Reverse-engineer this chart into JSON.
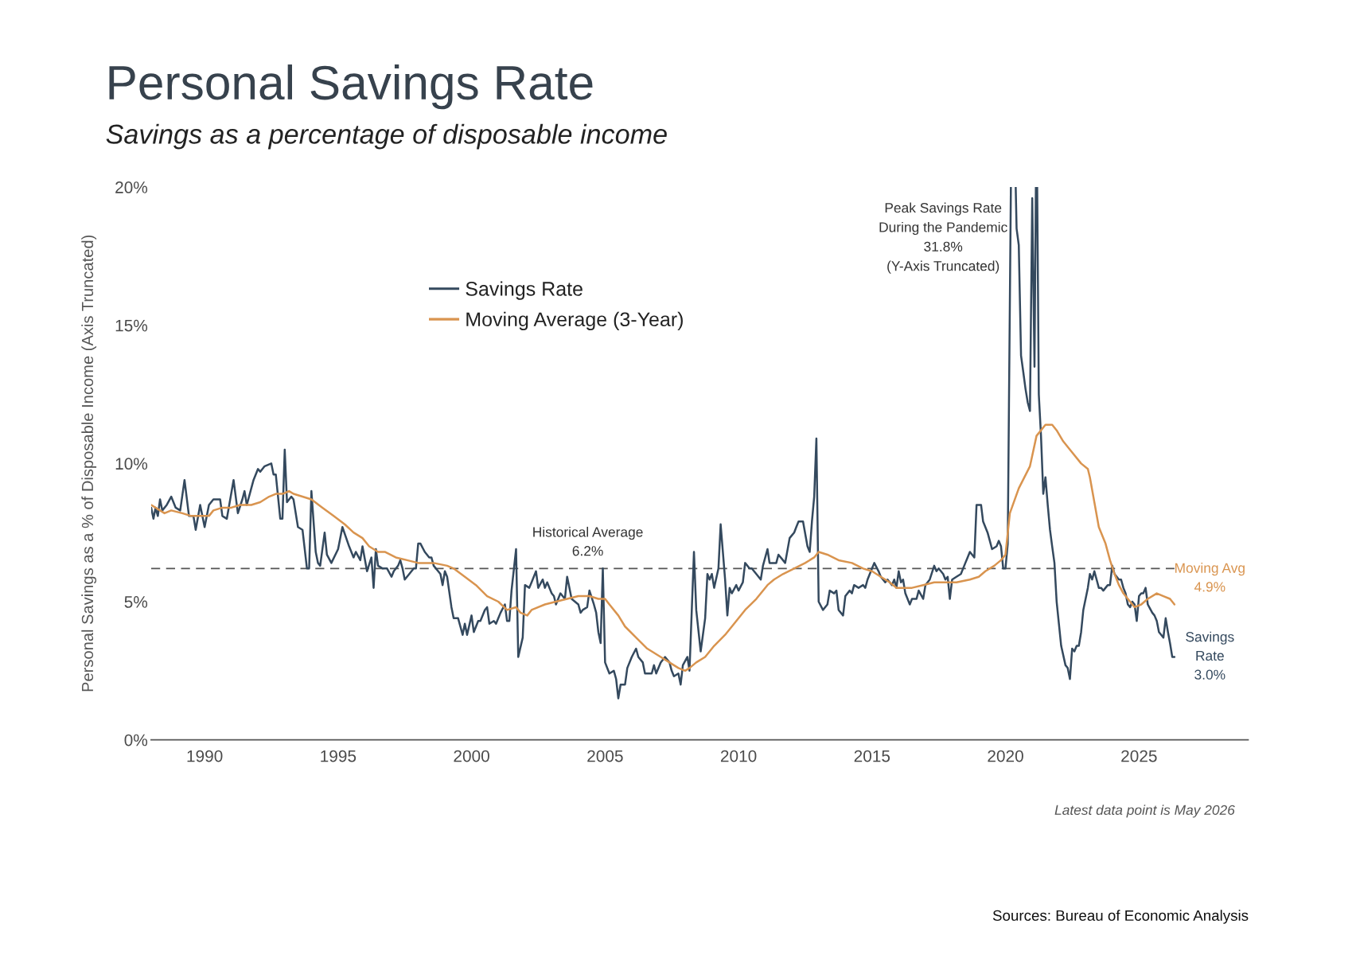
{
  "chart_data": {
    "type": "line",
    "title": "Personal Savings Rate",
    "subtitle": "Savings as a percentage of disposable income",
    "ylabel": "Personal Savings as a % of Disposable Income (Axis Truncated)",
    "xlim": [
      "1988-01",
      "2029-02"
    ],
    "xticks": [
      "1990",
      "1995",
      "2000",
      "2005",
      "2010",
      "2015",
      "2020",
      "2025"
    ],
    "ylim": [
      0,
      20
    ],
    "yticks": [
      {
        "value": 0,
        "label": "0%"
      },
      {
        "value": 5,
        "label": "5%"
      },
      {
        "value": 10,
        "label": "10%"
      },
      {
        "value": 15,
        "label": "15%"
      },
      {
        "value": 20,
        "label": "20%"
      }
    ],
    "legend": "top left",
    "ref_lines": [
      {
        "axis": "y",
        "value": 6.2,
        "label": "Historical Average\n6.2%",
        "color": "#555555",
        "line_style": "dashed"
      }
    ],
    "annotations": [
      "Peak Savings Rate\nDuring the Pandemic\n31.8%\n(Y-Axis Truncated)",
      {
        "text": "Moving Avg\n4.9%",
        "x": "2026-05",
        "y": 4.9
      },
      {
        "text": "Savings\nRate\n3.0%",
        "x": "2026-05",
        "y": 3.0
      },
      "Latest data point is May 2026",
      "Sources: Bureau of Economic Analysis"
    ],
    "series": [
      {
        "name": "Savings Rate",
        "color": "#34495e",
        "x": [
          "1988-01",
          "1988-02",
          "1988-03",
          "1988-04",
          "1988-05",
          "1988-06",
          "1988-08",
          "1988-10",
          "1988-12",
          "1989-02",
          "1989-04",
          "1989-06",
          "1989-08",
          "1989-09",
          "1989-11",
          "1990-01",
          "1990-03",
          "1990-05",
          "1990-08",
          "1990-09",
          "1990-11",
          "1991-02",
          "1991-04",
          "1991-06",
          "1991-07",
          "1991-08",
          "1991-11",
          "1992-01",
          "1992-02",
          "1992-04",
          "1992-07",
          "1992-08",
          "1992-09",
          "1992-11",
          "1992-12",
          "1993-01",
          "1993-02",
          "1993-04",
          "1993-05",
          "1993-07",
          "1993-09",
          "1993-11",
          "1993-12",
          "1994-01",
          "1994-03",
          "1994-04",
          "1994-05",
          "1994-07",
          "1994-08",
          "1994-10",
          "1995-01",
          "1995-03",
          "1995-06",
          "1995-08",
          "1995-09",
          "1995-11",
          "1995-12",
          "1996-02",
          "1996-04",
          "1996-05",
          "1996-06",
          "1996-07",
          "1996-09",
          "1996-11",
          "1997-01",
          "1997-02",
          "1997-04",
          "1997-05",
          "1997-06",
          "1997-07",
          "1997-09",
          "1997-11",
          "1997-12",
          "1998-01",
          "1998-02",
          "1998-04",
          "1998-06",
          "1998-07",
          "1998-08",
          "1998-10",
          "1998-11",
          "1998-12",
          "1999-01",
          "1999-02",
          "1999-04",
          "1999-05",
          "1999-07",
          "1999-08",
          "1999-09",
          "1999-10",
          "1999-11",
          "2000-01",
          "2000-02",
          "2000-04",
          "2000-05",
          "2000-07",
          "2000-08",
          "2000-09",
          "2000-11",
          "2000-12",
          "2001-02",
          "2001-04",
          "2001-05",
          "2001-06",
          "2001-07",
          "2001-09",
          "2001-10",
          "2001-12",
          "2002-01",
          "2002-03",
          "2002-04",
          "2002-06",
          "2002-07",
          "2002-09",
          "2002-10",
          "2002-11",
          "2003-01",
          "2003-02",
          "2003-03",
          "2003-05",
          "2003-07",
          "2003-08",
          "2003-09",
          "2003-10",
          "2004-01",
          "2004-02",
          "2004-03",
          "2004-05",
          "2004-06",
          "2004-08",
          "2004-09",
          "2004-10",
          "2004-11",
          "2004-12",
          "2005-01",
          "2005-03",
          "2005-05",
          "2005-06",
          "2005-07",
          "2005-08",
          "2005-10",
          "2005-11",
          "2006-01",
          "2006-03",
          "2006-04",
          "2006-06",
          "2006-07",
          "2006-08",
          "2006-10",
          "2006-11",
          "2006-12",
          "2007-02",
          "2007-04",
          "2007-06",
          "2007-07",
          "2007-08",
          "2007-10",
          "2007-11",
          "2007-12",
          "2008-02",
          "2008-03",
          "2008-05",
          "2008-06",
          "2008-08",
          "2008-10",
          "2008-11",
          "2008-12",
          "2009-01",
          "2009-02",
          "2009-04",
          "2009-05",
          "2009-07",
          "2009-08",
          "2009-09",
          "2009-10",
          "2009-12",
          "2010-01",
          "2010-03",
          "2010-04",
          "2010-06",
          "2010-07",
          "2010-09",
          "2010-11",
          "2010-12",
          "2011-02",
          "2011-03",
          "2011-06",
          "2011-07",
          "2011-09",
          "2011-10",
          "2011-12",
          "2012-01",
          "2012-02",
          "2012-03",
          "2012-04",
          "2012-06",
          "2012-08",
          "2012-09",
          "2012-10",
          "2012-11",
          "2012-12",
          "2013-01",
          "2013-03",
          "2013-05",
          "2013-06",
          "2013-08",
          "2013-09",
          "2013-10",
          "2013-12",
          "2014-01",
          "2014-03",
          "2014-04",
          "2014-05",
          "2014-07",
          "2014-09",
          "2014-10",
          "2014-11",
          "2015-01",
          "2015-02",
          "2015-04",
          "2015-05",
          "2015-07",
          "2015-08",
          "2015-10",
          "2015-11",
          "2015-12",
          "2016-01",
          "2016-02",
          "2016-03",
          "2016-04",
          "2016-06",
          "2016-07",
          "2016-09",
          "2016-10",
          "2016-12",
          "2017-01",
          "2017-03",
          "2017-05",
          "2017-06",
          "2017-07",
          "2017-09",
          "2017-10",
          "2017-11",
          "2017-12",
          "2018-01",
          "2018-03",
          "2018-05",
          "2018-07",
          "2018-08",
          "2018-09",
          "2018-11",
          "2018-12",
          "2019-02",
          "2019-03",
          "2019-05",
          "2019-06",
          "2019-07",
          "2019-09",
          "2019-10",
          "2019-11",
          "2019-12",
          "2020-01",
          "2020-02",
          "2020-03-15",
          "2020-04",
          "2020-05-20",
          "2020-06",
          "2020-07",
          "2020-08",
          "2020-09",
          "2020-10",
          "2020-11",
          "2020-12",
          "2021-01",
          "2021-02",
          "2021-02-20",
          "2021-03",
          "2021-03-10",
          "2021-04",
          "2021-05",
          "2021-06",
          "2021-07",
          "2021-08",
          "2021-09",
          "2021-10",
          "2021-11",
          "2021-12",
          "2022-01",
          "2022-02",
          "2022-04",
          "2022-05",
          "2022-06",
          "2022-07",
          "2022-08",
          "2022-09",
          "2022-10",
          "2022-11",
          "2022-12",
          "2023-02",
          "2023-03",
          "2023-04",
          "2023-05",
          "2023-06",
          "2023-07",
          "2023-08",
          "2023-09",
          "2023-10",
          "2023-11",
          "2023-12",
          "2024-01",
          "2024-02",
          "2024-04",
          "2024-05",
          "2024-06",
          "2024-07",
          "2024-08",
          "2024-09",
          "2024-10",
          "2024-11",
          "2024-12",
          "2025-01",
          "2025-02",
          "2025-03",
          "2025-04",
          "2025-05",
          "2025-07",
          "2025-08",
          "2025-09",
          "2025-10",
          "2025-11",
          "2025-12",
          "2026-01",
          "2026-02",
          "2026-03",
          "2026-04",
          "2026-05"
        ],
        "values": [
          8.4,
          8.0,
          8.4,
          8.1,
          8.7,
          8.3,
          8.5,
          8.8,
          8.4,
          8.3,
          9.4,
          8.1,
          8.1,
          7.6,
          8.5,
          7.7,
          8.5,
          8.7,
          8.7,
          8.1,
          8.0,
          9.4,
          8.2,
          8.7,
          9.0,
          8.5,
          9.4,
          9.8,
          9.7,
          9.9,
          10.0,
          9.6,
          9.6,
          8.0,
          8.0,
          10.5,
          8.6,
          8.8,
          8.7,
          7.7,
          7.6,
          6.2,
          6.2,
          9.0,
          6.8,
          6.4,
          6.3,
          7.5,
          6.7,
          6.4,
          6.9,
          7.7,
          7.0,
          6.6,
          6.8,
          6.5,
          7.0,
          6.1,
          6.6,
          5.5,
          6.9,
          6.3,
          6.2,
          6.2,
          5.9,
          6.1,
          6.3,
          6.5,
          6.2,
          5.8,
          6.0,
          6.2,
          6.2,
          7.1,
          7.1,
          6.8,
          6.6,
          6.6,
          6.3,
          6.1,
          6.0,
          5.6,
          6.1,
          5.9,
          4.8,
          4.4,
          4.4,
          4.1,
          3.8,
          4.2,
          3.8,
          4.5,
          3.9,
          4.3,
          4.3,
          4.7,
          4.8,
          4.2,
          4.3,
          4.2,
          4.6,
          4.9,
          4.3,
          4.3,
          5.4,
          6.9,
          3.0,
          3.7,
          5.6,
          5.5,
          5.7,
          6.1,
          5.5,
          5.8,
          5.5,
          5.7,
          5.3,
          5.2,
          4.9,
          5.3,
          5.1,
          5.9,
          5.5,
          5.1,
          4.9,
          4.6,
          4.7,
          4.8,
          5.4,
          4.9,
          4.6,
          3.9,
          3.5,
          6.2,
          2.8,
          2.4,
          2.5,
          2.2,
          1.5,
          2.0,
          2.0,
          2.6,
          3.0,
          3.3,
          3.0,
          2.8,
          2.4,
          2.4,
          2.4,
          2.7,
          2.4,
          2.8,
          3.0,
          2.8,
          2.5,
          2.3,
          2.4,
          2.0,
          2.7,
          3.0,
          2.5,
          6.8,
          4.7,
          3.2,
          4.4,
          6.0,
          5.8,
          6.0,
          5.5,
          6.2,
          7.8,
          5.8,
          4.5,
          5.5,
          5.3,
          5.6,
          5.4,
          5.7,
          6.4,
          6.2,
          6.2,
          6.0,
          5.8,
          6.3,
          6.9,
          6.4,
          6.4,
          6.7,
          6.5,
          6.4,
          7.3,
          7.4,
          7.5,
          7.7,
          7.9,
          7.9,
          7.0,
          6.8,
          7.9,
          8.8,
          10.9,
          5.0,
          4.7,
          4.9,
          5.4,
          5.3,
          5.4,
          4.7,
          4.5,
          5.2,
          5.4,
          5.3,
          5.6,
          5.5,
          5.6,
          5.5,
          5.8,
          6.2,
          6.4,
          6.1,
          5.9,
          5.7,
          5.8,
          5.6,
          5.8,
          5.5,
          6.1,
          5.7,
          5.8,
          5.3,
          4.9,
          5.1,
          5.1,
          5.4,
          5.1,
          5.6,
          5.8,
          6.3,
          6.1,
          6.2,
          6.0,
          5.8,
          5.9,
          5.1,
          5.8,
          5.9,
          6.0,
          6.4,
          6.6,
          6.8,
          6.6,
          8.5,
          8.5,
          7.9,
          7.5,
          7.2,
          6.9,
          7.0,
          7.2,
          7.0,
          6.2,
          6.2,
          7.1,
          20,
          null,
          20,
          18.5,
          17.9,
          13.9,
          13.3,
          12.7,
          12.2,
          11.9,
          19.6,
          13.5,
          20,
          null,
          20,
          12.5,
          11.0,
          8.9,
          9.5,
          8.5,
          7.6,
          7.0,
          6.4,
          5.0,
          4.2,
          3.4,
          2.7,
          2.6,
          2.2,
          3.3,
          3.2,
          3.4,
          3.4,
          3.9,
          4.7,
          5.5,
          6.0,
          5.8,
          6.1,
          5.8,
          5.5,
          5.5,
          5.4,
          5.5,
          5.6,
          5.6,
          6.3,
          6.0,
          5.8,
          5.8,
          5.5,
          5.3,
          4.9,
          4.8,
          5.0,
          4.9,
          4.3,
          5.2,
          5.3,
          5.3,
          5.5,
          4.9,
          4.6,
          4.5,
          4.3,
          3.9,
          3.8,
          3.7,
          4.4,
          3.9,
          3.5,
          3.0,
          3.0
        ]
      },
      {
        "name": "Moving Average (3-Year)",
        "color": "#d9944f",
        "x": [
          "1988-01",
          "1988-05",
          "1988-07",
          "1988-10",
          "1989-03",
          "1989-07",
          "1989-10",
          "1990-03",
          "1990-05",
          "1990-09",
          "1991-01",
          "1991-05",
          "1991-10",
          "1992-02",
          "1992-06",
          "1992-09",
          "1992-12",
          "1993-03",
          "1993-05",
          "1993-09",
          "1994-01",
          "1994-06",
          "1994-11",
          "1995-04",
          "1995-08",
          "1995-12",
          "1996-03",
          "1996-07",
          "1996-10",
          "1997-03",
          "1997-08",
          "1998-01",
          "1998-08",
          "1999-02",
          "1999-05",
          "1999-10",
          "2000-03",
          "2000-08",
          "2001-01",
          "2001-05",
          "2001-09",
          "2001-11",
          "2002-02",
          "2002-04",
          "2002-10",
          "2003-03",
          "2003-08",
          "2004-01",
          "2004-06",
          "2004-10",
          "2005-01",
          "2005-03",
          "2005-07",
          "2005-10",
          "2006-03",
          "2006-08",
          "2007-02",
          "2007-06",
          "2007-10",
          "2008-01",
          "2008-03",
          "2008-06",
          "2008-10",
          "2009-02",
          "2009-07",
          "2009-11",
          "2010-04",
          "2010-09",
          "2011-02",
          "2011-05",
          "2011-09",
          "2012-02",
          "2012-07",
          "2012-11",
          "2013-01",
          "2013-05",
          "2013-10",
          "2014-04",
          "2014-09",
          "2015-01",
          "2015-05",
          "2015-09",
          "2015-12",
          "2016-02",
          "2016-07",
          "2016-12",
          "2017-05",
          "2017-10",
          "2018-03",
          "2018-09",
          "2019-01",
          "2019-04",
          "2019-08",
          "2019-11",
          "2020-01",
          "2020-03",
          "2020-07",
          "2020-12",
          "2021-03",
          "2021-07",
          "2021-10",
          "2021-12",
          "2022-03",
          "2022-06",
          "2022-11",
          "2023-02",
          "2023-03",
          "2023-05",
          "2023-07",
          "2023-10",
          "2023-12",
          "2024-02",
          "2024-04",
          "2024-06",
          "2024-09",
          "2024-11",
          "2025-02",
          "2025-05",
          "2025-09",
          "2025-12",
          "2026-03",
          "2026-05"
        ],
        "values": [
          8.5,
          8.3,
          8.2,
          8.3,
          8.2,
          8.1,
          8.1,
          8.1,
          8.3,
          8.4,
          8.4,
          8.5,
          8.5,
          8.6,
          8.8,
          8.9,
          8.9,
          9.0,
          8.9,
          8.8,
          8.7,
          8.4,
          8.1,
          7.8,
          7.5,
          7.3,
          7.0,
          6.8,
          6.8,
          6.6,
          6.5,
          6.4,
          6.4,
          6.3,
          6.2,
          5.9,
          5.6,
          5.2,
          5.0,
          4.7,
          4.8,
          4.6,
          4.5,
          4.7,
          4.9,
          5.0,
          5.1,
          5.2,
          5.2,
          5.1,
          5.1,
          4.9,
          4.5,
          4.1,
          3.7,
          3.3,
          3.0,
          2.8,
          2.6,
          2.5,
          2.6,
          2.8,
          3.0,
          3.4,
          3.8,
          4.2,
          4.7,
          5.1,
          5.6,
          5.8,
          6.0,
          6.2,
          6.4,
          6.6,
          6.8,
          6.7,
          6.5,
          6.4,
          6.2,
          6.1,
          5.9,
          5.7,
          5.5,
          5.5,
          5.5,
          5.6,
          5.7,
          5.7,
          5.7,
          5.8,
          5.9,
          6.1,
          6.3,
          6.5,
          6.7,
          8.2,
          9.1,
          9.9,
          11.0,
          11.4,
          11.4,
          11.2,
          10.8,
          10.5,
          10.0,
          9.8,
          9.5,
          8.6,
          7.7,
          7.1,
          6.5,
          6.0,
          5.6,
          5.3,
          5.0,
          4.8,
          4.9,
          5.1,
          5.3,
          5.2,
          5.1,
          4.9
        ]
      }
    ]
  }
}
